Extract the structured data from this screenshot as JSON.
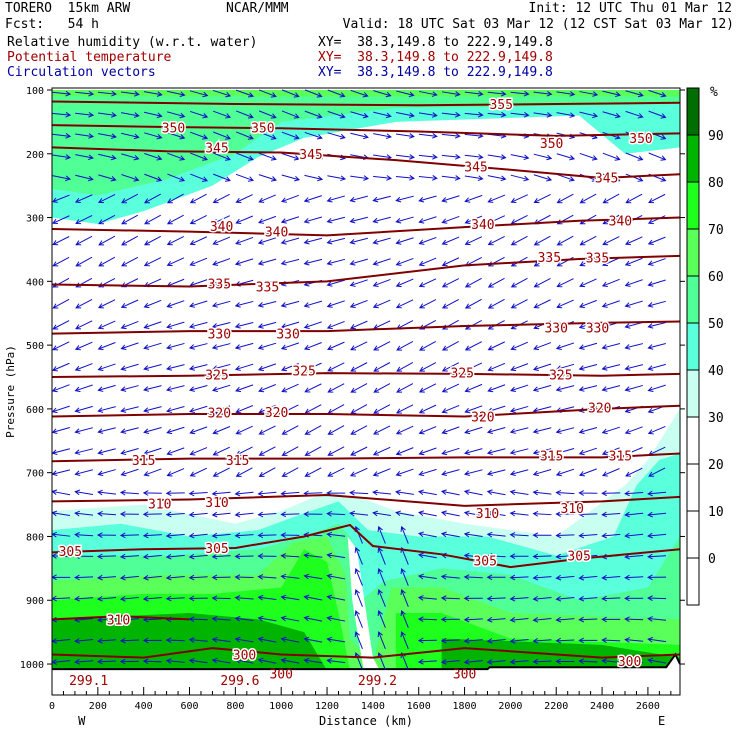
{
  "header": {
    "model": "TORERO  15km ARW",
    "org": "NCAR/MMM",
    "init": "Init: 12 UTC Thu 01 Mar 12",
    "fcst": "Fcst:   54 h",
    "valid": "Valid: 18 UTC Sat 03 Mar 12 (12 CST Sat 03 Mar 12)",
    "fields": [
      {
        "name": "Relative humidity (w.r.t. water)",
        "xy": "XY=  38.3,149.8 to 222.9,149.8",
        "color": "#000000"
      },
      {
        "name": "Potential temperature",
        "xy": "XY=  38.3,149.8 to 222.9,149.8",
        "color": "#a00000"
      },
      {
        "name": "Circulation vectors",
        "xy": "XY=  38.3,149.8 to 222.9,149.8",
        "color": "#0000a0"
      }
    ]
  },
  "chart_data": {
    "type": "cross-section",
    "xlabel": "Distance (km)",
    "ylabel": "Pressure (hPa)",
    "xlim": [
      0,
      2740
    ],
    "ylim": [
      1048,
      100
    ],
    "xticks": [
      0,
      200,
      400,
      600,
      800,
      1000,
      1200,
      1400,
      1600,
      1800,
      2000,
      2200,
      2400,
      2600
    ],
    "yticks": [
      100,
      200,
      300,
      400,
      500,
      600,
      700,
      800,
      900,
      1000
    ],
    "x_end_labels": {
      "left": "W",
      "right": "E"
    },
    "colorbar": {
      "unit": "%",
      "labels": [
        90,
        80,
        70,
        60,
        50,
        40,
        30,
        20,
        10,
        0
      ],
      "bands": [
        {
          "min": 90,
          "color": "#006e00"
        },
        {
          "min": 80,
          "color": "#00b400"
        },
        {
          "min": 70,
          "color": "#1eff1e"
        },
        {
          "min": 60,
          "color": "#5aff5a"
        },
        {
          "min": 50,
          "color": "#50ff96"
        },
        {
          "min": 40,
          "color": "#5affdc"
        },
        {
          "min": 30,
          "color": "#c8fff0"
        },
        {
          "min": 20,
          "color": "#ffffff"
        },
        {
          "min": 10,
          "color": "#ffffff"
        },
        {
          "min": 0,
          "color": "#ffffff"
        },
        {
          "min": -10,
          "color": "#ffffff"
        }
      ]
    },
    "rh_regions": [
      {
        "rh": 45,
        "pts": [
          [
            0,
            100
          ],
          [
            2740,
            100
          ],
          [
            2740,
            190
          ],
          [
            2500,
            200
          ],
          [
            2300,
            140
          ],
          [
            1500,
            150
          ],
          [
            1100,
            175
          ],
          [
            900,
            205
          ],
          [
            700,
            250
          ],
          [
            400,
            290
          ],
          [
            200,
            310
          ],
          [
            0,
            300
          ]
        ]
      },
      {
        "rh": 55,
        "pts": [
          [
            0,
            104
          ],
          [
            2740,
            104
          ],
          [
            2740,
            122
          ],
          [
            1500,
            128
          ],
          [
            1000,
            150
          ],
          [
            800,
            200
          ],
          [
            500,
            240
          ],
          [
            200,
            265
          ],
          [
            0,
            255
          ]
        ]
      },
      {
        "rh": 65,
        "pts": [
          [
            0,
            100
          ],
          [
            2740,
            100
          ],
          [
            2740,
            110
          ],
          [
            0,
            110
          ]
        ]
      },
      {
        "rh": 35,
        "pts": [
          [
            0,
            760
          ],
          [
            400,
            750
          ],
          [
            800,
            780
          ],
          [
            1000,
            760
          ],
          [
            1200,
            730
          ],
          [
            1350,
            740
          ],
          [
            1500,
            760
          ],
          [
            1800,
            780
          ],
          [
            2200,
            800
          ],
          [
            2500,
            720
          ],
          [
            2600,
            680
          ],
          [
            2740,
            600
          ],
          [
            2740,
            1010
          ],
          [
            0,
            1010
          ]
        ]
      },
      {
        "rh": 45,
        "pts": [
          [
            0,
            790
          ],
          [
            300,
            780
          ],
          [
            600,
            800
          ],
          [
            900,
            790
          ],
          [
            1050,
            770
          ],
          [
            1250,
            745
          ],
          [
            1380,
            790
          ],
          [
            1600,
            800
          ],
          [
            1900,
            800
          ],
          [
            2200,
            830
          ],
          [
            2450,
            800
          ],
          [
            2550,
            720
          ],
          [
            2650,
            680
          ],
          [
            2740,
            670
          ],
          [
            2740,
            1010
          ],
          [
            0,
            1010
          ]
        ]
      },
      {
        "rh": 55,
        "pts": [
          [
            0,
            830
          ],
          [
            500,
            830
          ],
          [
            900,
            820
          ],
          [
            1100,
            800
          ],
          [
            1250,
            780
          ],
          [
            1300,
            800
          ],
          [
            1350,
            900
          ],
          [
            1450,
            870
          ],
          [
            1700,
            850
          ],
          [
            2000,
            860
          ],
          [
            2300,
            900
          ],
          [
            2600,
            880
          ],
          [
            2740,
            800
          ],
          [
            2740,
            1010
          ],
          [
            0,
            1010
          ]
        ]
      },
      {
        "rh": 65,
        "pts": [
          [
            0,
            870
          ],
          [
            500,
            860
          ],
          [
            900,
            860
          ],
          [
            1050,
            810
          ],
          [
            1200,
            800
          ],
          [
            1280,
            860
          ],
          [
            1300,
            960
          ],
          [
            1400,
            1000
          ],
          [
            1480,
            880
          ],
          [
            1700,
            880
          ],
          [
            2000,
            920
          ],
          [
            2740,
            930
          ],
          [
            2740,
            1010
          ],
          [
            0,
            1010
          ]
        ]
      },
      {
        "rh": 75,
        "pts": [
          [
            0,
            900
          ],
          [
            400,
            890
          ],
          [
            700,
            890
          ],
          [
            1000,
            880
          ],
          [
            1100,
            820
          ],
          [
            1200,
            840
          ],
          [
            1250,
            920
          ],
          [
            1300,
            1010
          ],
          [
            1500,
            1010
          ],
          [
            1500,
            920
          ],
          [
            1700,
            920
          ],
          [
            2000,
            960
          ],
          [
            2740,
            970
          ],
          [
            2740,
            1010
          ],
          [
            0,
            1010
          ]
        ]
      },
      {
        "rh": 85,
        "pts": [
          [
            0,
            930
          ],
          [
            600,
            920
          ],
          [
            900,
            930
          ],
          [
            1100,
            950
          ],
          [
            1200,
            1010
          ],
          [
            0,
            1010
          ]
        ]
      },
      {
        "rh": 85,
        "pts": [
          [
            1700,
            960
          ],
          [
            2400,
            970
          ],
          [
            2740,
            990
          ],
          [
            2740,
            1010
          ],
          [
            1700,
            1010
          ]
        ]
      },
      {
        "rh": 20,
        "pts": [
          [
            1290,
            800
          ],
          [
            1330,
            820
          ],
          [
            1400,
            990
          ],
          [
            1430,
            1010
          ],
          [
            1360,
            1010
          ],
          [
            1310,
            900
          ]
        ]
      }
    ],
    "theta_contours": [
      {
        "value": 355,
        "pts": [
          [
            0,
            118
          ],
          [
            800,
            122
          ],
          [
            1600,
            124
          ],
          [
            2200,
            122
          ],
          [
            2740,
            120
          ]
        ],
        "labels": [
          [
            1960,
            122
          ]
        ]
      },
      {
        "value": 350,
        "pts": [
          [
            0,
            155
          ],
          [
            500,
            158
          ],
          [
            1000,
            160
          ],
          [
            1600,
            165
          ],
          [
            2200,
            172
          ],
          [
            2740,
            168
          ]
        ],
        "labels": [
          [
            530,
            159
          ],
          [
            920,
            159
          ],
          [
            2180,
            183
          ],
          [
            2570,
            175
          ]
        ]
      },
      {
        "value": 345,
        "pts": [
          [
            0,
            190
          ],
          [
            500,
            196
          ],
          [
            1000,
            198
          ],
          [
            1500,
            210
          ],
          [
            2000,
            225
          ],
          [
            2400,
            238
          ],
          [
            2740,
            232
          ]
        ],
        "labels": [
          [
            720,
            190
          ],
          [
            1130,
            200
          ],
          [
            1850,
            220
          ],
          [
            2420,
            237
          ]
        ]
      },
      {
        "value": 340,
        "pts": [
          [
            0,
            318
          ],
          [
            600,
            322
          ],
          [
            1200,
            328
          ],
          [
            1800,
            315
          ],
          [
            2300,
            305
          ],
          [
            2740,
            300
          ]
        ],
        "labels": [
          [
            740,
            313
          ],
          [
            980,
            322
          ],
          [
            1880,
            310
          ],
          [
            2480,
            305
          ]
        ]
      },
      {
        "value": 335,
        "pts": [
          [
            0,
            405
          ],
          [
            600,
            408
          ],
          [
            1200,
            400
          ],
          [
            1800,
            375
          ],
          [
            2300,
            365
          ],
          [
            2740,
            360
          ]
        ],
        "labels": [
          [
            730,
            403
          ],
          [
            940,
            408
          ],
          [
            2170,
            362
          ],
          [
            2380,
            363
          ]
        ]
      },
      {
        "value": 330,
        "pts": [
          [
            0,
            482
          ],
          [
            600,
            478
          ],
          [
            1200,
            478
          ],
          [
            1800,
            470
          ],
          [
            2400,
            465
          ],
          [
            2740,
            463
          ]
        ],
        "labels": [
          [
            730,
            482
          ],
          [
            1030,
            482
          ],
          [
            2200,
            472
          ],
          [
            2380,
            472
          ]
        ]
      },
      {
        "value": 325,
        "pts": [
          [
            0,
            550
          ],
          [
            600,
            548
          ],
          [
            1200,
            544
          ],
          [
            1800,
            545
          ],
          [
            2400,
            548
          ],
          [
            2740,
            545
          ]
        ],
        "labels": [
          [
            720,
            546
          ],
          [
            1100,
            540
          ],
          [
            1790,
            543
          ],
          [
            2220,
            546
          ]
        ]
      },
      {
        "value": 320,
        "pts": [
          [
            0,
            612
          ],
          [
            600,
            608
          ],
          [
            1200,
            608
          ],
          [
            1800,
            612
          ],
          [
            2400,
            600
          ],
          [
            2740,
            595
          ]
        ],
        "labels": [
          [
            730,
            606
          ],
          [
            980,
            605
          ],
          [
            1880,
            612
          ],
          [
            2390,
            598
          ]
        ]
      },
      {
        "value": 315,
        "pts": [
          [
            0,
            682
          ],
          [
            600,
            678
          ],
          [
            1200,
            678
          ],
          [
            1800,
            676
          ],
          [
            2400,
            676
          ],
          [
            2740,
            670
          ]
        ],
        "labels": [
          [
            400,
            680
          ],
          [
            810,
            680
          ],
          [
            2180,
            673
          ],
          [
            2480,
            673
          ]
        ]
      },
      {
        "value": 310,
        "pts": [
          [
            0,
            745
          ],
          [
            600,
            742
          ],
          [
            1200,
            735
          ],
          [
            1800,
            752
          ],
          [
            2400,
            745
          ],
          [
            2740,
            738
          ]
        ],
        "labels": [
          [
            470,
            748
          ],
          [
            720,
            746
          ],
          [
            1900,
            763
          ],
          [
            2270,
            755
          ]
        ]
      },
      {
        "value": 305,
        "pts": [
          [
            0,
            825
          ],
          [
            400,
            820
          ],
          [
            800,
            818
          ],
          [
            1100,
            800
          ],
          [
            1300,
            782
          ],
          [
            1400,
            815
          ],
          [
            1700,
            828
          ],
          [
            2000,
            848
          ],
          [
            2300,
            835
          ],
          [
            2740,
            820
          ]
        ],
        "labels": [
          [
            80,
            823
          ],
          [
            720,
            818
          ],
          [
            1890,
            838
          ],
          [
            2300,
            830
          ]
        ]
      },
      {
        "value": 300,
        "pts": [
          [
            0,
            985
          ],
          [
            400,
            990
          ],
          [
            700,
            975
          ],
          [
            1000,
            985
          ],
          [
            1400,
            990
          ],
          [
            1800,
            975
          ],
          [
            2400,
            990
          ],
          [
            2740,
            985
          ]
        ],
        "labels": [
          [
            840,
            985
          ],
          [
            2520,
            995
          ]
        ]
      },
      {
        "value": 310,
        "pts": [
          [
            0,
            930
          ],
          [
            300,
            925
          ],
          [
            600,
            930
          ]
        ],
        "labels": [
          [
            290,
            930
          ]
        ]
      }
    ],
    "surface_labels": [
      {
        "text": "299.1",
        "km": 160,
        "hPa": 1025
      },
      {
        "text": "299.6",
        "km": 820,
        "hPa": 1025
      },
      {
        "text": "300",
        "km": 1000,
        "hPa": 1015
      },
      {
        "text": "299.2",
        "km": 1420,
        "hPa": 1025
      },
      {
        "text": "300",
        "km": 1800,
        "hPa": 1015
      }
    ],
    "terrain": [
      [
        0,
        1008
      ],
      [
        1900,
        1008
      ],
      [
        1910,
        1005
      ],
      [
        2680,
        1005
      ],
      [
        2720,
        985
      ],
      [
        2740,
        1000
      ]
    ],
    "vector_profile": [
      {
        "p_min": 100,
        "p_max": 270,
        "u": 1.0,
        "w": -0.25
      },
      {
        "p_min": 270,
        "p_max": 700,
        "u": -1.0,
        "w": -0.4
      },
      {
        "p_min": 700,
        "p_max": 1010,
        "u": -1.0,
        "w": 0.05
      }
    ],
    "vector_updraft": {
      "km_min": 1300,
      "km_max": 1550,
      "p_min": 780,
      "w": 1.0
    }
  }
}
